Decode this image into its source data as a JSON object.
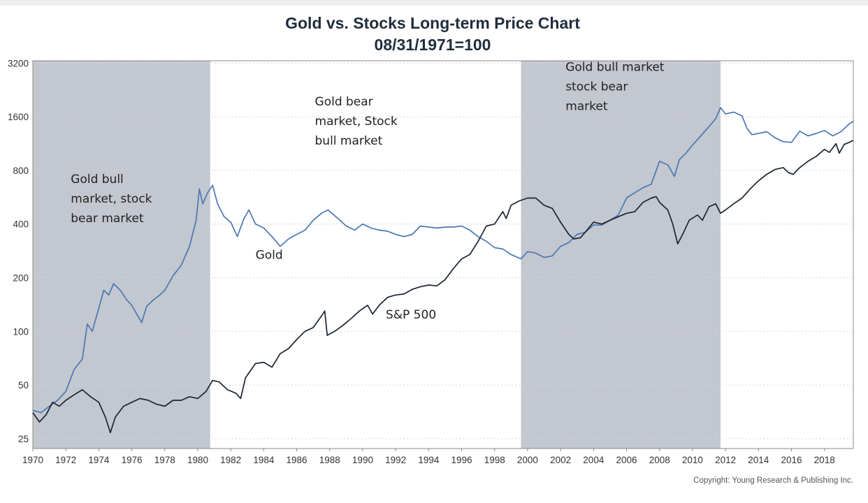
{
  "chart_data": {
    "type": "line",
    "title": "Gold vs. Stocks Long-term Price Chart",
    "subtitle": "08/31/1971=100",
    "xlabel": "",
    "ylabel": "",
    "yscale": "log2",
    "ylim": [
      22,
      3300
    ],
    "xlim": [
      1970,
      2019.75
    ],
    "grid": {
      "horizontal": true,
      "style": "dotted"
    },
    "y_ticks": [
      25,
      50,
      100,
      200,
      400,
      800,
      1600,
      3200
    ],
    "x_ticks": [
      "1970",
      "1972",
      "1974",
      "1976",
      "1978",
      "1980",
      "1982",
      "1984",
      "1986",
      "1988",
      "1990",
      "1992",
      "1994",
      "1996",
      "1998",
      "2000",
      "2002",
      "2004",
      "2006",
      "2008",
      "2010",
      "2012",
      "2014",
      "2016",
      "2018"
    ],
    "shaded_regions": [
      {
        "start": 1970,
        "end": 1980.75
      },
      {
        "start": 1999.6,
        "end": 2011.7
      }
    ],
    "annotations": [
      {
        "lines": [
          "Gold bull",
          "market, stock",
          "bear market"
        ],
        "x": 1972.3,
        "y": 680
      },
      {
        "lines": [
          "Gold bear",
          "market, Stock",
          "bull market"
        ],
        "x": 1987.1,
        "y": 1850
      },
      {
        "lines": [
          "Gold bull market",
          "stock bear",
          "market"
        ],
        "x": 2002.3,
        "y": 2900
      },
      {
        "lines": [
          "Gold"
        ],
        "x": 1983.5,
        "y": 255
      },
      {
        "lines": [
          "S&P 500"
        ],
        "x": 1991.4,
        "y": 118
      }
    ],
    "copyright": "Copyright: Young Research & Publishing Inc.",
    "series": [
      {
        "color": "#4a78b4",
        "points": [
          [
            1970,
            36
          ],
          [
            1970.5,
            35
          ],
          [
            1971,
            38
          ],
          [
            1971.5,
            41
          ],
          [
            1972,
            46
          ],
          [
            1972.5,
            61
          ],
          [
            1973,
            70
          ],
          [
            1973.3,
            110
          ],
          [
            1973.6,
            100
          ],
          [
            1973.9,
            125
          ],
          [
            1974.3,
            170
          ],
          [
            1974.6,
            160
          ],
          [
            1974.9,
            185
          ],
          [
            1975.3,
            170
          ],
          [
            1975.7,
            150
          ],
          [
            1976,
            140
          ],
          [
            1976.3,
            125
          ],
          [
            1976.6,
            112
          ],
          [
            1976.9,
            138
          ],
          [
            1977.3,
            150
          ],
          [
            1977.7,
            160
          ],
          [
            1978,
            170
          ],
          [
            1978.5,
            205
          ],
          [
            1979,
            235
          ],
          [
            1979.5,
            300
          ],
          [
            1979.9,
            420
          ],
          [
            1980.1,
            630
          ],
          [
            1980.3,
            520
          ],
          [
            1980.6,
            600
          ],
          [
            1980.9,
            660
          ],
          [
            1981.2,
            520
          ],
          [
            1981.6,
            440
          ],
          [
            1982,
            410
          ],
          [
            1982.4,
            340
          ],
          [
            1982.8,
            430
          ],
          [
            1983.1,
            480
          ],
          [
            1983.5,
            400
          ],
          [
            1984,
            380
          ],
          [
            1984.5,
            340
          ],
          [
            1985,
            300
          ],
          [
            1985.5,
            330
          ],
          [
            1986,
            350
          ],
          [
            1986.5,
            370
          ],
          [
            1987,
            420
          ],
          [
            1987.5,
            460
          ],
          [
            1987.9,
            480
          ],
          [
            1988.5,
            430
          ],
          [
            1989,
            390
          ],
          [
            1989.5,
            370
          ],
          [
            1990,
            400
          ],
          [
            1990.5,
            380
          ],
          [
            1991,
            370
          ],
          [
            1991.5,
            365
          ],
          [
            1992,
            350
          ],
          [
            1992.5,
            340
          ],
          [
            1993,
            350
          ],
          [
            1993.5,
            390
          ],
          [
            1994,
            385
          ],
          [
            1994.5,
            380
          ],
          [
            1995,
            385
          ],
          [
            1995.5,
            385
          ],
          [
            1996,
            390
          ],
          [
            1996.5,
            370
          ],
          [
            1997,
            340
          ],
          [
            1997.5,
            320
          ],
          [
            1998,
            295
          ],
          [
            1998.5,
            290
          ],
          [
            1999,
            270
          ],
          [
            1999.6,
            255
          ],
          [
            2000,
            280
          ],
          [
            2000.5,
            275
          ],
          [
            2001,
            260
          ],
          [
            2001.5,
            265
          ],
          [
            2002,
            300
          ],
          [
            2002.5,
            315
          ],
          [
            2003,
            350
          ],
          [
            2003.5,
            360
          ],
          [
            2004,
            395
          ],
          [
            2004.5,
            395
          ],
          [
            2005,
            420
          ],
          [
            2005.5,
            450
          ],
          [
            2006,
            560
          ],
          [
            2006.5,
            600
          ],
          [
            2007,
            640
          ],
          [
            2007.5,
            670
          ],
          [
            2008,
            900
          ],
          [
            2008.5,
            860
          ],
          [
            2008.9,
            740
          ],
          [
            2009.2,
            920
          ],
          [
            2009.6,
            1000
          ],
          [
            2010,
            1110
          ],
          [
            2010.5,
            1250
          ],
          [
            2011,
            1410
          ],
          [
            2011.4,
            1560
          ],
          [
            2011.7,
            1800
          ],
          [
            2012,
            1660
          ],
          [
            2012.5,
            1700
          ],
          [
            2013,
            1620
          ],
          [
            2013.3,
            1380
          ],
          [
            2013.6,
            1270
          ],
          [
            2014,
            1290
          ],
          [
            2014.5,
            1320
          ],
          [
            2015,
            1220
          ],
          [
            2015.5,
            1160
          ],
          [
            2016,
            1150
          ],
          [
            2016.5,
            1330
          ],
          [
            2017,
            1250
          ],
          [
            2017.5,
            1290
          ],
          [
            2018,
            1340
          ],
          [
            2018.5,
            1250
          ],
          [
            2019,
            1320
          ],
          [
            2019.5,
            1460
          ],
          [
            2019.75,
            1510
          ]
        ]
      },
      {
        "color": "#1c2530",
        "points": [
          [
            1970,
            35
          ],
          [
            1970.4,
            31
          ],
          [
            1970.8,
            34
          ],
          [
            1971.2,
            40
          ],
          [
            1971.6,
            38
          ],
          [
            1972,
            41
          ],
          [
            1972.5,
            44
          ],
          [
            1973,
            47
          ],
          [
            1973.5,
            43
          ],
          [
            1974,
            40
          ],
          [
            1974.4,
            33
          ],
          [
            1974.7,
            27
          ],
          [
            1975,
            33
          ],
          [
            1975.5,
            38
          ],
          [
            1976,
            40
          ],
          [
            1976.5,
            42
          ],
          [
            1977,
            41
          ],
          [
            1977.5,
            39
          ],
          [
            1978,
            38
          ],
          [
            1978.5,
            41
          ],
          [
            1979,
            41
          ],
          [
            1979.5,
            43
          ],
          [
            1980,
            42
          ],
          [
            1980.5,
            46
          ],
          [
            1980.9,
            53
          ],
          [
            1981.3,
            52
          ],
          [
            1981.8,
            47
          ],
          [
            1982.3,
            45
          ],
          [
            1982.6,
            42
          ],
          [
            1982.9,
            55
          ],
          [
            1983.5,
            66
          ],
          [
            1984,
            67
          ],
          [
            1984.5,
            63
          ],
          [
            1985,
            75
          ],
          [
            1985.5,
            80
          ],
          [
            1986,
            90
          ],
          [
            1986.5,
            100
          ],
          [
            1987,
            105
          ],
          [
            1987.5,
            122
          ],
          [
            1987.7,
            130
          ],
          [
            1987.85,
            95
          ],
          [
            1988.3,
            100
          ],
          [
            1988.8,
            108
          ],
          [
            1989.3,
            118
          ],
          [
            1989.8,
            130
          ],
          [
            1990.3,
            140
          ],
          [
            1990.6,
            125
          ],
          [
            1991,
            140
          ],
          [
            1991.5,
            155
          ],
          [
            1992,
            160
          ],
          [
            1992.5,
            162
          ],
          [
            1993,
            172
          ],
          [
            1993.5,
            178
          ],
          [
            1994,
            182
          ],
          [
            1994.5,
            180
          ],
          [
            1995,
            195
          ],
          [
            1995.5,
            225
          ],
          [
            1996,
            255
          ],
          [
            1996.5,
            270
          ],
          [
            1997,
            320
          ],
          [
            1997.5,
            390
          ],
          [
            1998,
            400
          ],
          [
            1998.5,
            470
          ],
          [
            1998.7,
            430
          ],
          [
            1999,
            510
          ],
          [
            1999.5,
            540
          ],
          [
            2000,
            560
          ],
          [
            2000.5,
            560
          ],
          [
            2001,
            510
          ],
          [
            2001.5,
            490
          ],
          [
            2001.8,
            440
          ],
          [
            2002,
            410
          ],
          [
            2002.5,
            350
          ],
          [
            2002.8,
            330
          ],
          [
            2003.2,
            335
          ],
          [
            2003.6,
            370
          ],
          [
            2004,
            410
          ],
          [
            2004.5,
            400
          ],
          [
            2005,
            420
          ],
          [
            2005.5,
            440
          ],
          [
            2006,
            460
          ],
          [
            2006.5,
            470
          ],
          [
            2007,
            530
          ],
          [
            2007.5,
            560
          ],
          [
            2007.8,
            570
          ],
          [
            2008,
            530
          ],
          [
            2008.5,
            480
          ],
          [
            2008.8,
            400
          ],
          [
            2009.1,
            310
          ],
          [
            2009.4,
            350
          ],
          [
            2009.8,
            420
          ],
          [
            2010.3,
            450
          ],
          [
            2010.6,
            420
          ],
          [
            2011,
            500
          ],
          [
            2011.4,
            520
          ],
          [
            2011.7,
            460
          ],
          [
            2012,
            480
          ],
          [
            2012.5,
            520
          ],
          [
            2013,
            560
          ],
          [
            2013.5,
            630
          ],
          [
            2014,
            700
          ],
          [
            2014.5,
            760
          ],
          [
            2015,
            810
          ],
          [
            2015.5,
            830
          ],
          [
            2015.8,
            780
          ],
          [
            2016.1,
            760
          ],
          [
            2016.5,
            830
          ],
          [
            2017,
            900
          ],
          [
            2017.5,
            960
          ],
          [
            2018,
            1050
          ],
          [
            2018.3,
            1010
          ],
          [
            2018.7,
            1130
          ],
          [
            2018.9,
            1000
          ],
          [
            2019.2,
            1120
          ],
          [
            2019.5,
            1150
          ],
          [
            2019.75,
            1180
          ]
        ]
      }
    ]
  }
}
